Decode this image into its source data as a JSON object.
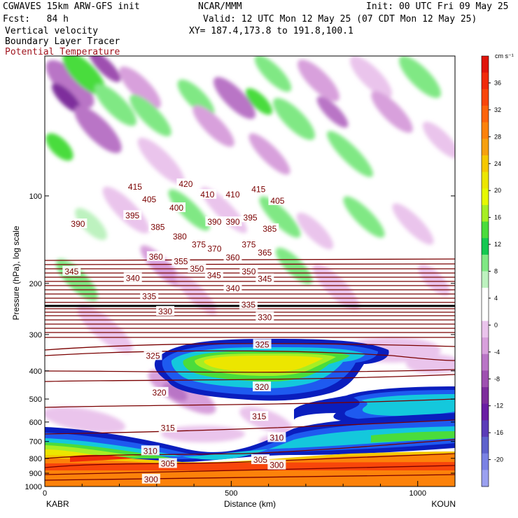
{
  "header": {
    "model": "CGWAVES 15km ARW-GFS init",
    "org": "NCAR/MMM",
    "init": "Init: 00 UTC Fri 09 May 25",
    "fcst": "Fcst:   84 h",
    "valid": "Valid: 12 UTC Mon 12 May 25 (07 CDT Mon 12 May 25)",
    "field1": "Vertical velocity",
    "xy": "XY= 187.4,173.8 to 191.8,100.1",
    "field2": "Boundary Layer Tracer",
    "field3": "Potential Temperature"
  },
  "chart_data": {
    "type": "heatmap",
    "xlabel": "Distance (km)",
    "ylabel": "Pressure (hPa), log scale",
    "x_ticks": [
      0,
      500,
      1000
    ],
    "y_ticks": [
      100,
      200,
      300,
      400,
      500,
      600,
      700,
      800,
      900,
      1000
    ],
    "x_start_label": "KABR",
    "x_end_label": "KOUN",
    "colorbar": {
      "unit": "cm s⁻¹",
      "ticks": [
        36,
        32,
        28,
        24,
        20,
        16,
        12,
        8,
        4,
        0,
        -4,
        -8,
        -12,
        -16,
        -20
      ],
      "colors": [
        "#e0140a",
        "#f02a0a",
        "#f8460a",
        "#fc640a",
        "#fc820a",
        "#f6a010",
        "#f5c800",
        "#ece600",
        "#e6f800",
        "#a6ee24",
        "#4adc3c",
        "#14c850",
        "#80e884",
        "#bdf2bf",
        "#ffffff",
        "#ffffff",
        "#eac4ec",
        "#d8a0dc",
        "#b975c6",
        "#9e50b0",
        "#7e2d9c",
        "#6a1da4",
        "#5b3cb8",
        "#5e62cc",
        "#7a82e4",
        "#9aa0f0"
      ]
    },
    "theta_labels": [
      {
        "v": 300,
        "x": 285,
        "p": 945
      },
      {
        "v": 305,
        "x": 330,
        "p": 835
      },
      {
        "v": 305,
        "x": 578,
        "p": 810
      },
      {
        "v": 300,
        "x": 622,
        "p": 845
      },
      {
        "v": 310,
        "x": 283,
        "p": 755
      },
      {
        "v": 310,
        "x": 622,
        "p": 680
      },
      {
        "v": 315,
        "x": 330,
        "p": 630
      },
      {
        "v": 315,
        "x": 575,
        "p": 575
      },
      {
        "v": 320,
        "x": 307,
        "p": 475
      },
      {
        "v": 320,
        "x": 582,
        "p": 455
      },
      {
        "v": 325,
        "x": 290,
        "p": 355
      },
      {
        "v": 325,
        "x": 583,
        "p": 325
      },
      {
        "v": 330,
        "x": 323,
        "p": 250
      },
      {
        "v": 330,
        "x": 590,
        "p": 262
      },
      {
        "v": 335,
        "x": 546,
        "p": 237
      },
      {
        "v": 335,
        "x": 280,
        "p": 222
      },
      {
        "v": 340,
        "x": 236,
        "p": 192
      },
      {
        "v": 340,
        "x": 504,
        "p": 208
      },
      {
        "v": 345,
        "x": 72,
        "p": 182
      },
      {
        "v": 345,
        "x": 454,
        "p": 188
      },
      {
        "v": 345,
        "x": 590,
        "p": 193
      },
      {
        "v": 350,
        "x": 408,
        "p": 178
      },
      {
        "v": 350,
        "x": 547,
        "p": 182
      },
      {
        "v": 355,
        "x": 365,
        "p": 168
      },
      {
        "v": 360,
        "x": 298,
        "p": 162
      },
      {
        "v": 360,
        "x": 504,
        "p": 163
      },
      {
        "v": 365,
        "x": 590,
        "p": 157
      },
      {
        "v": 370,
        "x": 455,
        "p": 152
      },
      {
        "v": 375,
        "x": 413,
        "p": 147
      },
      {
        "v": 375,
        "x": 547,
        "p": 147
      },
      {
        "v": 380,
        "x": 362,
        "p": 138
      },
      {
        "v": 385,
        "x": 303,
        "p": 128
      },
      {
        "v": 385,
        "x": 603,
        "p": 130
      },
      {
        "v": 390,
        "x": 89,
        "p": 125
      },
      {
        "v": 390,
        "x": 455,
        "p": 123
      },
      {
        "v": 390,
        "x": 504,
        "p": 123
      },
      {
        "v": 395,
        "x": 235,
        "p": 117
      },
      {
        "v": 395,
        "x": 551,
        "p": 119
      },
      {
        "v": 400,
        "x": 353,
        "p": 110
      },
      {
        "v": 405,
        "x": 280,
        "p": 103
      },
      {
        "v": 405,
        "x": 624,
        "p": 104
      },
      {
        "v": 410,
        "x": 436,
        "p": 99
      },
      {
        "v": 410,
        "x": 504,
        "p": 99
      },
      {
        "v": 415,
        "x": 242,
        "p": 93
      },
      {
        "v": 415,
        "x": 573,
        "p": 95
      },
      {
        "v": 420,
        "x": 378,
        "p": 91
      }
    ]
  }
}
